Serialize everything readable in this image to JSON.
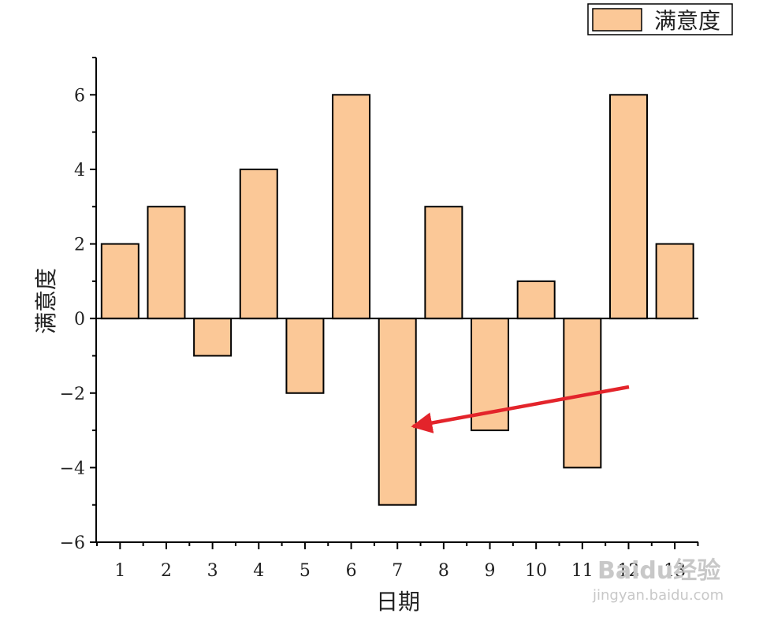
{
  "chart_data": {
    "type": "bar",
    "categories": [
      "1",
      "2",
      "3",
      "4",
      "5",
      "6",
      "7",
      "8",
      "9",
      "10",
      "11",
      "12",
      "13"
    ],
    "series": [
      {
        "name": "满意度",
        "values": [
          2,
          3,
          -1,
          4,
          -2,
          6,
          -5,
          3,
          -3,
          1,
          -4,
          6,
          2
        ]
      }
    ],
    "xlabel": "日期",
    "ylabel": "满意度",
    "ylim": [
      -6,
      7
    ],
    "yticks": [
      -6,
      -4,
      -2,
      0,
      2,
      4,
      6
    ],
    "ytick_labels": [
      "−6",
      "−4",
      "−2",
      "0",
      "2",
      "4",
      "6"
    ],
    "grid": false,
    "legend_position": "top-right",
    "colors": {
      "bar_fill": "#FBC897",
      "bar_stroke": "#000000",
      "arrow": "#E3242B"
    },
    "annotations": [
      {
        "type": "arrow",
        "points_to_category": "7",
        "y": -2.9
      }
    ]
  },
  "watermark": {
    "brand": "Baidu经验",
    "url": "jingyan.baidu.com"
  }
}
